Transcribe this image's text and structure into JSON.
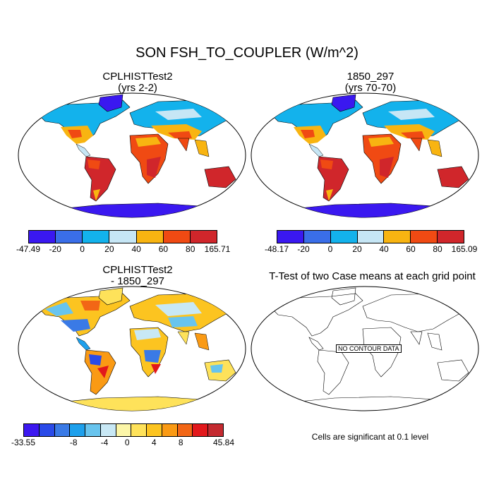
{
  "title": "SON FSH_TO_COUPLER (W/m^2)",
  "panels": [
    {
      "title_line1": "CPLHISTTest2",
      "title_line2": "(yrs 2-2)",
      "colors": [
        "#3a18f0",
        "#3a6ee8",
        "#13b2ec",
        "#c6e6f5",
        "#f8b411",
        "#f04a13",
        "#d0262b"
      ],
      "ticks": [
        "-47.49",
        "-20",
        "0",
        "20",
        "40",
        "60",
        "80",
        "165.71"
      ]
    },
    {
      "title_line1": "1850_297",
      "title_line2": "(yrs 70-70)",
      "colors": [
        "#3a18f0",
        "#3a6ee8",
        "#13b2ec",
        "#c6e6f5",
        "#f8b411",
        "#f04a13",
        "#d0262b"
      ],
      "ticks": [
        "-48.17",
        "-20",
        "0",
        "20",
        "40",
        "60",
        "80",
        "165.09"
      ]
    },
    {
      "title_line1": "CPLHISTTest2",
      "title_line2": "- 1850_297",
      "colors": [
        "#3c18f0",
        "#2a4ae8",
        "#3a7ae6",
        "#1ea0ec",
        "#68c4ee",
        "#c8e8f5",
        "#fcf6a8",
        "#fee25a",
        "#fcc420",
        "#fa9a14",
        "#f26616",
        "#e2181c",
        "#c42a30"
      ],
      "ticks": [
        "-33.55",
        "-8",
        "-4",
        "0",
        "4",
        "8",
        "45.84"
      ]
    },
    {
      "title_line1": "T-Test of two Case means at each grid point",
      "title_line2": ""
    }
  ],
  "no_contour_label": "NO CONTOUR DATA",
  "significance_note": "Cells are significant at 0.1 level"
}
